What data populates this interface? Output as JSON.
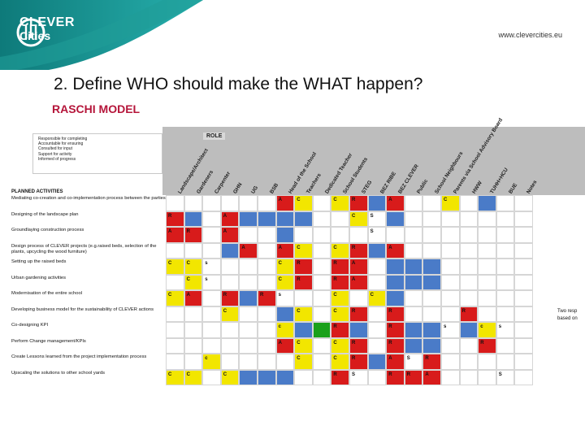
{
  "header": {
    "logo_line1": "CLEVER",
    "logo_line2": "Cities",
    "url": "www.clevercities.eu",
    "colors": {
      "teal_dark": "#0e7a7a",
      "teal_light": "#27b0ad",
      "logo_mark": "#ffffff"
    }
  },
  "title": "2. Define WHO should make the WHAT happen?",
  "subtitle": "RASCHI MODEL",
  "matrix": {
    "role_label": "ROLE",
    "planned_label": "PLANNED ACTIVITIES",
    "legend": [
      "Responsible for completing",
      "Accountable for ensuring",
      "Consulted for input",
      "Support for activity",
      "Informed of progress"
    ],
    "columns": [
      "Landscape/Architect",
      "Gardeners",
      "Carpenter",
      "GHN",
      "UG",
      "BSB",
      "Head of the School",
      "Teachers",
      "Dedicated Teacher",
      "School Students",
      "STEG",
      "BEZ RIBE",
      "BEZ CLEVER",
      "Public",
      "School Neighbours",
      "Parents via School Advisory Board",
      "HWW",
      "TUHH+HCU",
      "BUE",
      "Notes"
    ],
    "activities": [
      "Mediating co-creation and co-implementation process between the parties",
      "Designing of the landscape plan",
      "Groundlaying construction process",
      "Design process of CLEVER projects (e.g.raised beds, selection of the plants, upcycling the wood furniture)",
      "Setting up the raised beds",
      "Urban gardening activities",
      "Modernisation of the entire school",
      "Developing business model for the sustainability of CLEVER actions",
      "Co-designing KPI",
      "Perform Change management/KPIs",
      "Create Lessons learned from the project implementation process",
      "Upscaling the solutions to other school yards"
    ],
    "notes": [
      "",
      "",
      "",
      "",
      "",
      "",
      "",
      "Two resp based on",
      "",
      "",
      "",
      ""
    ],
    "colors": {
      "R": "#d81b1b",
      "A": "#d81b1b",
      "C": "#f2e600",
      "S": "#ffffff",
      "I": "#4a7bc8",
      "G": "#1aa01a"
    },
    "cells": [
      [
        "",
        "",
        "",
        "",
        "",
        "",
        "A",
        "C",
        "",
        "C",
        "R",
        "I",
        "A",
        "",
        "",
        "C",
        "",
        "I",
        "",
        ""
      ],
      [
        "R",
        "I",
        "",
        "A",
        "I",
        "I",
        "I",
        "I",
        "",
        "",
        "C",
        "S",
        "I",
        "",
        "",
        "",
        "",
        "",
        "",
        ""
      ],
      [
        "A",
        "R",
        "",
        "A",
        "",
        "",
        "I",
        "",
        "",
        "",
        "",
        "S",
        "",
        "",
        "",
        "",
        "",
        "",
        "",
        ""
      ],
      [
        "",
        "",
        "",
        "I",
        "A",
        "",
        "A",
        "C",
        "",
        "C",
        "R",
        "I",
        "A",
        "",
        "",
        "",
        "",
        "",
        "",
        ""
      ],
      [
        "C",
        "C",
        "s",
        "",
        "",
        "",
        "C",
        "R",
        "",
        "R",
        "A",
        "",
        "I",
        "I",
        "I",
        "",
        "",
        "",
        "",
        ""
      ],
      [
        "",
        "C",
        "s",
        "",
        "",
        "",
        "C",
        "R",
        "",
        "R",
        "A",
        "",
        "I",
        "I",
        "I",
        "",
        "",
        "",
        "",
        ""
      ],
      [
        "C",
        "A",
        "",
        "R",
        "I",
        "R",
        "s",
        "",
        "",
        "C",
        "",
        "C",
        "I",
        "",
        "",
        "",
        "",
        "",
        "",
        ""
      ],
      [
        "",
        "",
        "",
        "C",
        "",
        "",
        "I",
        "C",
        "",
        "C",
        "R",
        "",
        "R",
        "",
        "",
        "",
        "R",
        "",
        "",
        ""
      ],
      [
        "",
        "",
        "",
        "",
        "",
        "",
        "c",
        "I",
        "G",
        "R",
        "I",
        "",
        "R",
        "I",
        "I",
        "s",
        "I",
        "c",
        "s",
        ""
      ],
      [
        "",
        "",
        "",
        "",
        "",
        "",
        "A",
        "C",
        "",
        "C",
        "R",
        "",
        "R",
        "I",
        "I",
        "",
        "",
        "R",
        "",
        ""
      ],
      [
        "",
        "",
        "c",
        "",
        "",
        "",
        "",
        "C",
        "",
        "C",
        "R",
        "I",
        "A",
        "S",
        "R",
        "",
        "",
        "",
        "",
        ""
      ],
      [
        "C",
        "C",
        "",
        "C",
        "I",
        "I",
        "I",
        "",
        "",
        "R",
        "S",
        "",
        "R",
        "R",
        "A",
        "",
        "",
        "",
        "S",
        ""
      ]
    ]
  }
}
